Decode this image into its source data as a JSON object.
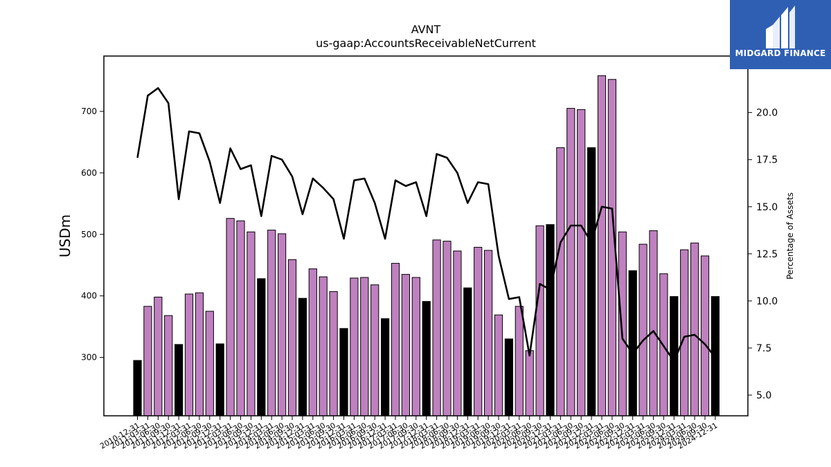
{
  "chart_data": {
    "type": "bar",
    "title": "AVNT",
    "subtitle": "us-gaap:AccountsReceivableNetCurrent",
    "ylabel": "USDm",
    "y2label": "Percentage of Assets",
    "ylim": [
      205,
      790
    ],
    "y2lim": [
      3.9,
      23.0
    ],
    "yticks": [
      300,
      400,
      500,
      600,
      700
    ],
    "y2ticks": [
      5.0,
      7.5,
      10.0,
      12.5,
      15.0,
      17.5,
      20.0
    ],
    "colors": {
      "quarter": "#bf80bf",
      "annual": "#000000",
      "line": "#000000"
    },
    "categories": [
      "2010-12-31",
      "2011-03-31",
      "2011-06-30",
      "2011-09-30",
      "2011-12-31",
      "2012-03-31",
      "2012-06-30",
      "2012-09-30",
      "2012-12-31",
      "2013-03-31",
      "2013-06-30",
      "2013-09-30",
      "2013-12-31",
      "2014-03-31",
      "2014-06-30",
      "2014-09-30",
      "2014-12-31",
      "2015-03-31",
      "2015-06-30",
      "2015-09-30",
      "2015-12-31",
      "2016-03-31",
      "2016-06-30",
      "2016-09-30",
      "2016-12-31",
      "2017-03-31",
      "2017-06-30",
      "2017-09-30",
      "2017-12-31",
      "2018-03-31",
      "2018-06-30",
      "2018-09-30",
      "2018-12-31",
      "2019-03-31",
      "2019-06-30",
      "2019-09-30",
      "2019-12-31",
      "2020-03-31",
      "2020-06-30",
      "2020-09-30",
      "2020-12-31",
      "2021-03-31",
      "2021-06-30",
      "2021-09-30",
      "2021-12-31",
      "2022-03-31",
      "2022-06-30",
      "2022-09-30",
      "2022-12-31",
      "2023-03-31",
      "2023-06-30",
      "2023-09-30",
      "2023-12-31",
      "2024-03-31",
      "2024-06-30",
      "2024-09-30",
      "2024-12-31"
    ],
    "series": [
      {
        "name": "AccountsReceivableNetCurrent",
        "annual_flags": [
          1,
          0,
          0,
          0,
          1,
          0,
          0,
          0,
          1,
          0,
          0,
          0,
          1,
          0,
          0,
          0,
          1,
          0,
          0,
          0,
          1,
          0,
          0,
          0,
          1,
          0,
          0,
          0,
          1,
          0,
          0,
          0,
          1,
          0,
          0,
          0,
          1,
          0,
          0,
          0,
          1,
          0,
          0,
          0,
          1,
          0,
          0,
          0,
          1,
          0,
          0,
          0,
          1,
          0,
          0,
          0,
          1
        ],
        "values": [
          295,
          383,
          398,
          368,
          321,
          403,
          405,
          375,
          322,
          526,
          522,
          504,
          428,
          507,
          501,
          459,
          396,
          444,
          431,
          407,
          347,
          429,
          430,
          418,
          363,
          453,
          435,
          430,
          391,
          491,
          489,
          473,
          413,
          479,
          474,
          369,
          330,
          383,
          311,
          514,
          516,
          641,
          705,
          703,
          641,
          758,
          752,
          504,
          441,
          484,
          506,
          436,
          399,
          475,
          486,
          465,
          399
        ]
      },
      {
        "name": "Percentage of Assets",
        "axis": "right",
        "values": [
          17.6,
          20.9,
          21.3,
          20.5,
          15.4,
          19.0,
          18.9,
          17.4,
          15.2,
          18.1,
          17.0,
          17.2,
          14.5,
          17.7,
          17.5,
          16.6,
          14.6,
          16.5,
          16.0,
          15.4,
          13.3,
          16.4,
          16.5,
          15.2,
          13.3,
          16.4,
          16.1,
          16.3,
          14.5,
          17.8,
          17.6,
          16.8,
          15.2,
          16.3,
          16.2,
          12.4,
          10.1,
          10.2,
          7.1,
          10.9,
          10.6,
          13.1,
          14.0,
          14.0,
          13.1,
          15.0,
          14.9,
          8.0,
          7.2,
          7.9,
          8.4,
          7.6,
          6.8,
          8.1,
          8.2,
          7.7,
          7.0
        ]
      }
    ]
  },
  "brand": {
    "logo_text": "MIDGARD FINANCE"
  }
}
